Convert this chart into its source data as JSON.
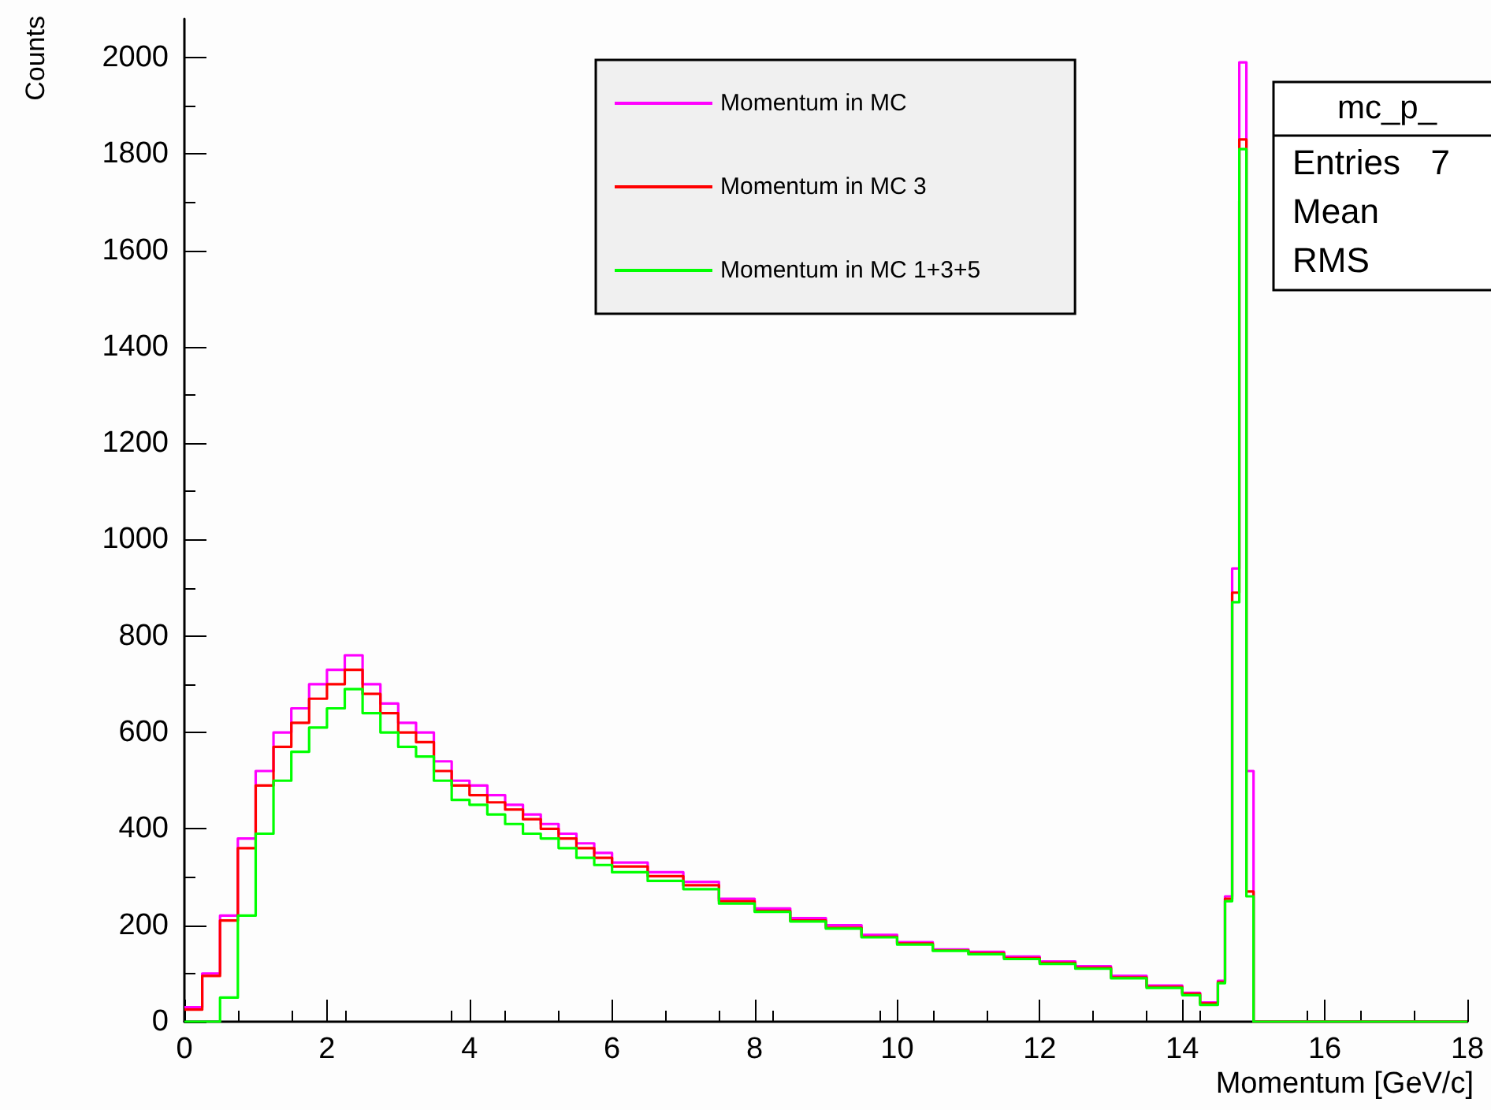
{
  "chart_data": {
    "type": "histogram",
    "xlabel": "Momentum [GeV/c]",
    "ylabel": "Counts",
    "bins": [
      0,
      0.25,
      0.5,
      0.75,
      1,
      1.25,
      1.5,
      1.75,
      2,
      2.25,
      2.5,
      2.75,
      3,
      3.25,
      3.5,
      3.75,
      4,
      4.25,
      4.5,
      4.75,
      5,
      5.25,
      5.5,
      5.75,
      6,
      6.5,
      7,
      7.5,
      8,
      8.5,
      9,
      9.5,
      10,
      10.5,
      11,
      11.5,
      12,
      12.5,
      13,
      13.5,
      14,
      14.25,
      14.5,
      14.6,
      14.7,
      14.8,
      14.9,
      15,
      18
    ],
    "series": [
      {
        "name": "Momentum in MC",
        "color": "#ff00ff",
        "values": [
          30,
          100,
          220,
          380,
          520,
          600,
          650,
          700,
          730,
          760,
          700,
          660,
          620,
          600,
          540,
          500,
          490,
          470,
          450,
          430,
          410,
          390,
          370,
          350,
          330,
          310,
          290,
          255,
          235,
          215,
          200,
          180,
          165,
          150,
          145,
          135,
          125,
          115,
          95,
          75,
          60,
          40,
          85,
          260,
          940,
          1990,
          520,
          0
        ]
      },
      {
        "name": "Momentum in MC 3",
        "color": "#ff0000",
        "values": [
          25,
          95,
          210,
          360,
          490,
          570,
          620,
          670,
          700,
          730,
          680,
          640,
          600,
          580,
          520,
          490,
          470,
          455,
          440,
          420,
          400,
          380,
          360,
          340,
          322,
          302,
          283,
          250,
          230,
          210,
          195,
          176,
          162,
          148,
          142,
          132,
          122,
          112,
          92,
          72,
          58,
          38,
          82,
          255,
          890,
          1830,
          270,
          0
        ]
      },
      {
        "name": "Momentum in MC 1+3+5",
        "color": "#00ff00",
        "values": [
          0,
          0,
          50,
          220,
          390,
          500,
          560,
          610,
          650,
          690,
          640,
          600,
          570,
          550,
          500,
          460,
          450,
          430,
          410,
          390,
          380,
          360,
          340,
          325,
          310,
          292,
          275,
          245,
          228,
          208,
          193,
          175,
          160,
          147,
          140,
          130,
          120,
          110,
          90,
          70,
          55,
          35,
          80,
          250,
          870,
          1810,
          260,
          0
        ]
      }
    ],
    "xlim": [
      0,
      18
    ],
    "xticks": [
      0,
      2,
      4,
      6,
      8,
      10,
      12,
      14,
      16,
      18
    ],
    "ylim": [
      0,
      2080
    ],
    "yticks": [
      0,
      200,
      400,
      600,
      800,
      1000,
      1200,
      1400,
      1600,
      1800,
      2000
    ],
    "legend": "top",
    "grid": false,
    "annotations": [
      "mc_p_",
      "Entries",
      "7",
      "Mean",
      "RMS"
    ]
  }
}
